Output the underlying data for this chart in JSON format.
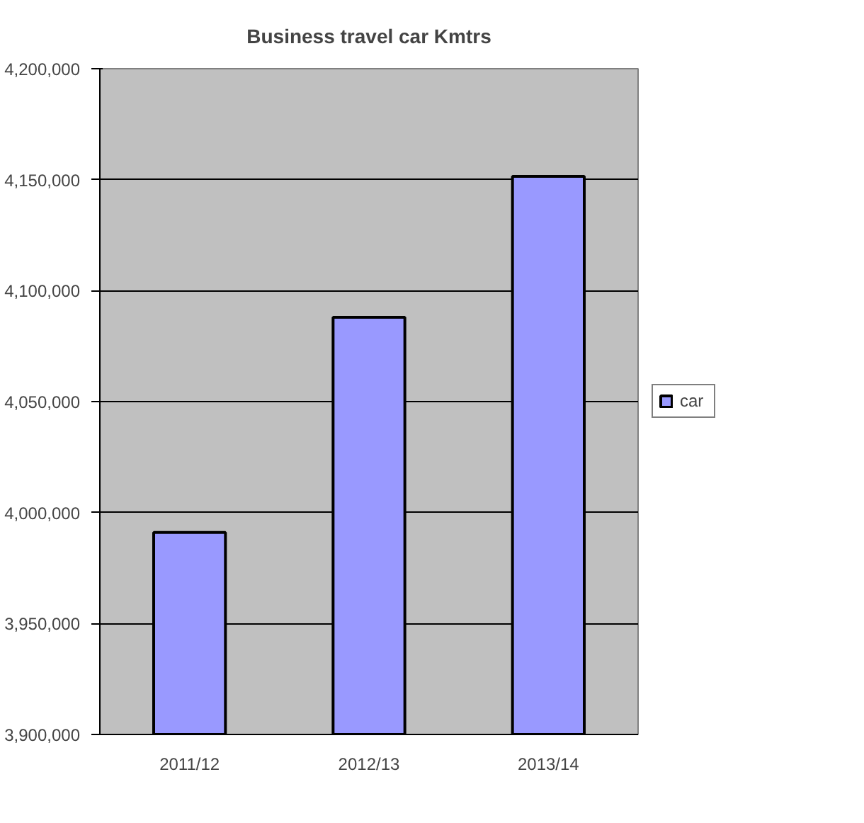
{
  "chart_data": {
    "type": "bar",
    "title": "Business travel car Kmtrs",
    "categories": [
      "2011/12",
      "2012/13",
      "2013/14"
    ],
    "series": [
      {
        "name": "car",
        "color": "#9999ff",
        "values": [
          3991000,
          4088000,
          4151500
        ]
      }
    ],
    "ylim": [
      3900000,
      4200000
    ],
    "yticks": [
      {
        "value": 3900000,
        "label": "3,900,000"
      },
      {
        "value": 3950000,
        "label": "3,950,000"
      },
      {
        "value": 4000000,
        "label": "4,000,000"
      },
      {
        "value": 4050000,
        "label": "4,050,000"
      },
      {
        "value": 4100000,
        "label": "4,100,000"
      },
      {
        "value": 4150000,
        "label": "4,150,000"
      },
      {
        "value": 4200000,
        "label": "4,200,000"
      }
    ],
    "grid": "y",
    "legend": "right"
  }
}
